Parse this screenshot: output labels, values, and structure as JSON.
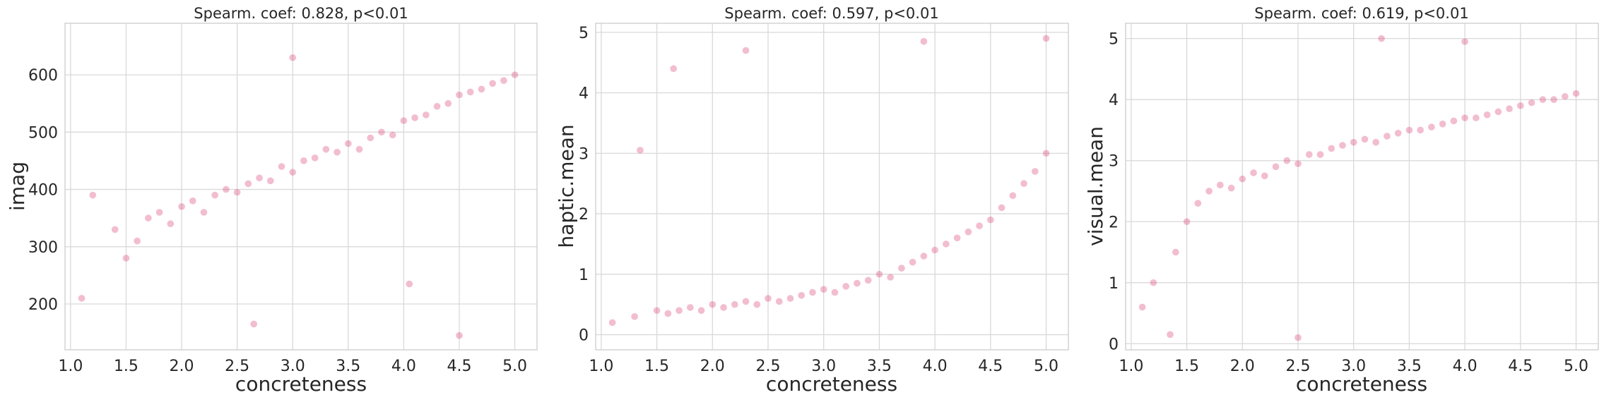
{
  "chart_data": [
    {
      "type": "scatter",
      "title": "Spearm. coef: 0.828, p<0.01",
      "xlabel": "concreteness",
      "ylabel": "imag",
      "xlim": [
        0.95,
        5.2
      ],
      "ylim": [
        120,
        690
      ],
      "xticks": [
        1.0,
        1.5,
        2.0,
        2.5,
        3.0,
        3.5,
        4.0,
        4.5,
        5.0
      ],
      "xtick_labels": [
        "1.0",
        "1.5",
        "2.0",
        "2.5",
        "3.0",
        "3.5",
        "4.0",
        "4.5",
        "5.0"
      ],
      "yticks": [
        200,
        300,
        400,
        500,
        600
      ],
      "ytick_labels": [
        "200",
        "300",
        "400",
        "500",
        "600"
      ],
      "grid": true,
      "color": "#d6336c",
      "x": [
        1.1,
        1.2,
        1.4,
        1.5,
        1.6,
        1.7,
        1.8,
        1.9,
        2.0,
        2.1,
        2.2,
        2.3,
        2.4,
        2.5,
        2.6,
        2.7,
        2.8,
        2.9,
        3.0,
        3.1,
        3.2,
        3.3,
        3.4,
        3.5,
        3.6,
        3.7,
        3.8,
        3.9,
        4.0,
        4.1,
        4.2,
        4.3,
        4.4,
        4.5,
        4.6,
        4.7,
        4.8,
        4.9,
        5.0,
        2.65,
        4.5,
        4.05,
        3.0
      ],
      "y": [
        210,
        390,
        330,
        280,
        310,
        350,
        360,
        340,
        370,
        380,
        360,
        390,
        400,
        395,
        410,
        420,
        415,
        440,
        430,
        450,
        455,
        470,
        465,
        480,
        470,
        490,
        500,
        495,
        520,
        525,
        530,
        545,
        550,
        565,
        570,
        575,
        585,
        590,
        600,
        165,
        145,
        235,
        630
      ]
    },
    {
      "type": "scatter",
      "title": "Spearm. coef: 0.597, p<0.01",
      "xlabel": "concreteness",
      "ylabel": "haptic.mean",
      "xlim": [
        0.95,
        5.2
      ],
      "ylim": [
        -0.25,
        5.15
      ],
      "xticks": [
        1.0,
        1.5,
        2.0,
        2.5,
        3.0,
        3.5,
        4.0,
        4.5,
        5.0
      ],
      "xtick_labels": [
        "1.0",
        "1.5",
        "2.0",
        "2.5",
        "3.0",
        "3.5",
        "4.0",
        "4.5",
        "5.0"
      ],
      "yticks": [
        0,
        1,
        2,
        3,
        4,
        5
      ],
      "ytick_labels": [
        "0",
        "1",
        "2",
        "3",
        "4",
        "5"
      ],
      "grid": true,
      "color": "#d6336c",
      "x": [
        1.1,
        1.3,
        1.5,
        1.6,
        1.7,
        1.8,
        1.9,
        2.0,
        2.1,
        2.2,
        2.3,
        2.4,
        2.5,
        2.6,
        2.7,
        2.8,
        2.9,
        3.0,
        3.1,
        3.2,
        3.3,
        3.4,
        3.5,
        3.6,
        3.7,
        3.8,
        3.9,
        4.0,
        4.1,
        4.2,
        4.3,
        4.4,
        4.5,
        4.6,
        4.7,
        4.8,
        4.9,
        5.0,
        1.35,
        1.65,
        2.3,
        3.9,
        5.0
      ],
      "y": [
        0.2,
        0.3,
        0.4,
        0.35,
        0.4,
        0.45,
        0.4,
        0.5,
        0.45,
        0.5,
        0.55,
        0.5,
        0.6,
        0.55,
        0.6,
        0.65,
        0.7,
        0.75,
        0.7,
        0.8,
        0.85,
        0.9,
        1.0,
        0.95,
        1.1,
        1.2,
        1.3,
        1.4,
        1.5,
        1.6,
        1.7,
        1.8,
        1.9,
        2.1,
        2.3,
        2.5,
        2.7,
        3.0,
        3.05,
        4.4,
        4.7,
        4.85,
        4.9
      ]
    },
    {
      "type": "scatter",
      "title": "Spearm. coef: 0.619, p<0.01",
      "xlabel": "concreteness",
      "ylabel": "visual.mean",
      "xlim": [
        0.95,
        5.2
      ],
      "ylim": [
        -0.1,
        5.25
      ],
      "xticks": [
        1.0,
        1.5,
        2.0,
        2.5,
        3.0,
        3.5,
        4.0,
        4.5,
        5.0
      ],
      "xtick_labels": [
        "1.0",
        "1.5",
        "2.0",
        "2.5",
        "3.0",
        "3.5",
        "4.0",
        "4.5",
        "5.0"
      ],
      "yticks": [
        0,
        1,
        2,
        3,
        4,
        5
      ],
      "ytick_labels": [
        "0",
        "1",
        "2",
        "3",
        "4",
        "5"
      ],
      "grid": true,
      "color": "#d6336c",
      "x": [
        1.1,
        1.2,
        1.4,
        1.5,
        1.6,
        1.7,
        1.8,
        1.9,
        2.0,
        2.1,
        2.2,
        2.3,
        2.4,
        2.5,
        2.6,
        2.7,
        2.8,
        2.9,
        3.0,
        3.1,
        3.2,
        3.3,
        3.4,
        3.5,
        3.6,
        3.7,
        3.8,
        3.9,
        4.0,
        4.1,
        4.2,
        4.3,
        4.4,
        4.5,
        4.6,
        4.7,
        4.8,
        4.9,
        5.0,
        1.35,
        2.5,
        3.25,
        4.0
      ],
      "y": [
        0.6,
        1.0,
        1.5,
        2.0,
        2.3,
        2.5,
        2.6,
        2.55,
        2.7,
        2.8,
        2.75,
        2.9,
        3.0,
        2.95,
        3.1,
        3.1,
        3.2,
        3.25,
        3.3,
        3.35,
        3.3,
        3.4,
        3.45,
        3.5,
        3.5,
        3.55,
        3.6,
        3.65,
        3.7,
        3.7,
        3.75,
        3.8,
        3.85,
        3.9,
        3.95,
        4.0,
        4.0,
        4.05,
        4.1,
        0.15,
        0.1,
        5.0,
        4.95
      ]
    }
  ]
}
